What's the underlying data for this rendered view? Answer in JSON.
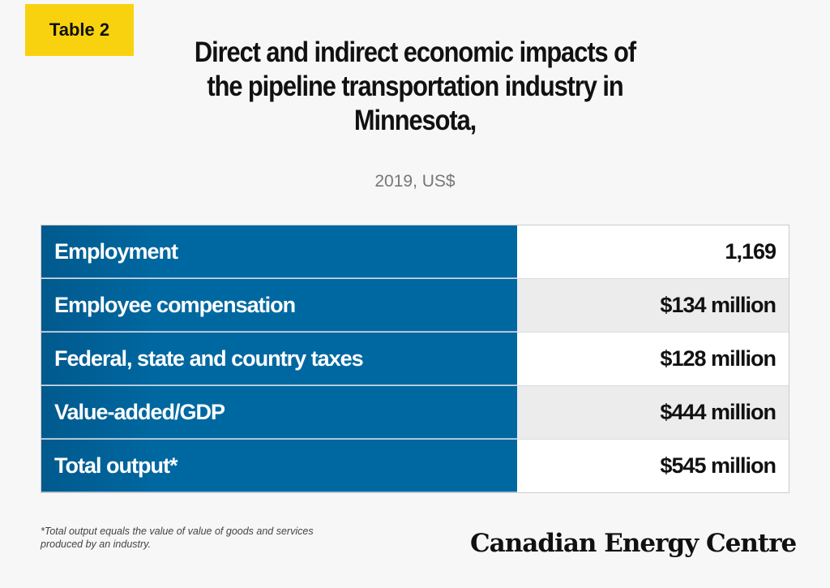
{
  "badge": "Table 2",
  "title": "Direct and indirect economic impacts of the pipeline transportation industry in Minnesota,",
  "subtitle": "2019, US$",
  "chart_data": {
    "type": "table",
    "rows": [
      {
        "label": "Employment",
        "value": "1,169"
      },
      {
        "label": "Employee compensation",
        "value": "$134 million"
      },
      {
        "label": "Federal, state and country taxes",
        "value": "$128 million"
      },
      {
        "label": "Value-added/GDP",
        "value": "$444 million"
      },
      {
        "label": "Total output*",
        "value": "$545 million"
      }
    ]
  },
  "footnote": "*Total output equals the value of value of goods and services produced by an industry.",
  "logo": "Canadian Energy Centre",
  "colors": {
    "accent": "#f8d20e",
    "header_blue": "#0068a1"
  }
}
